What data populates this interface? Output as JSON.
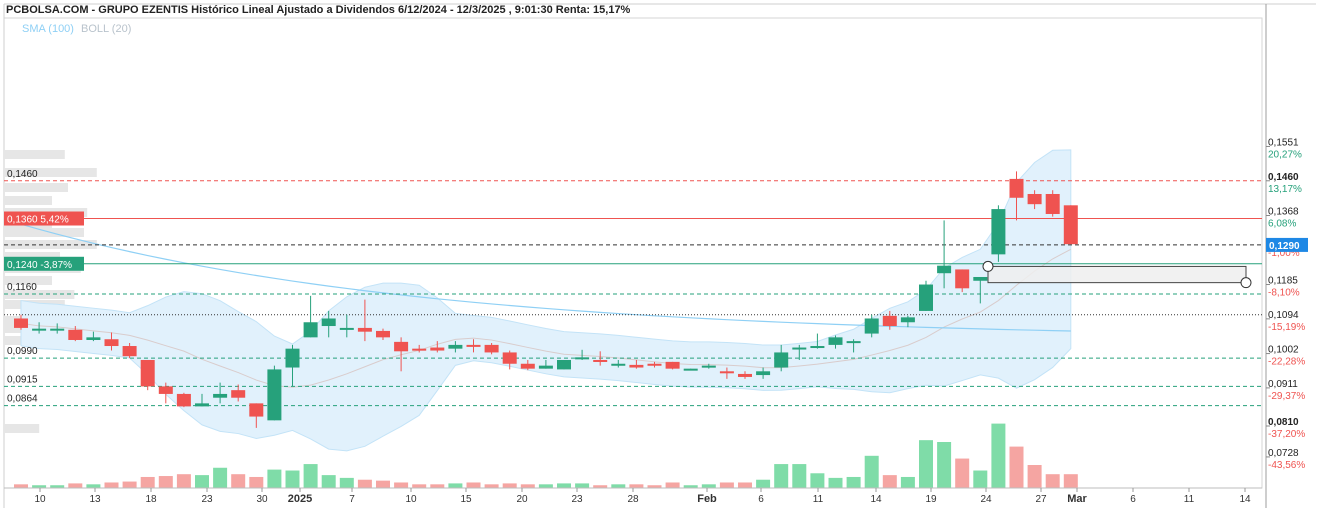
{
  "header": {
    "title": "PCBOLSA.COM - GRUPO EZENTIS Histórico Lineal Ajustado a Dividendos 6/12/2024 - 12/3/2025 , 9:01:30 Renta: 15,17%",
    "legend_sma": "SMA (100)",
    "legend_boll": "BOLL (20)"
  },
  "colors": {
    "up": "#26a17b",
    "down": "#ef5350",
    "vol_up": "#7fdca8",
    "vol_down": "#f5a5a2",
    "sma": "#8fd0f5",
    "boll_fill": "#e1f1fc",
    "boll_edge": "#c3e3f7",
    "resistance": "#ef5350",
    "support": "#26a17b",
    "last_price": "#1e88e5"
  },
  "chart_data": {
    "type": "candlestick",
    "title": "PCBOLSA.COM - GRUPO EZENTIS Histórico Lineal Ajustado a Dividendos 6/12/2024 - 12/3/2025 , 9:01:30 Renta: 15,17%",
    "x_axis_ticks": [
      "10",
      "13",
      "18",
      "23",
      "30",
      "2025",
      "7",
      "10",
      "15",
      "20",
      "23",
      "28",
      "Feb",
      "6",
      "11",
      "14",
      "19",
      "24",
      "27",
      "Mar",
      "6",
      "11",
      "14"
    ],
    "y_ticks": [
      {
        "value": 0.1551,
        "label": "0,1551",
        "pct": "20,27%"
      },
      {
        "value": 0.146,
        "label": "0,1460",
        "pct": "13,17%"
      },
      {
        "value": 0.1368,
        "label": "0,1368",
        "pct": "6,08%"
      },
      {
        "value": 0.129,
        "label": "0,1290",
        "pct": "-1,00%"
      },
      {
        "value": 0.1185,
        "label": "0,1185",
        "pct": "-8,10%"
      },
      {
        "value": 0.1094,
        "label": "0,1094",
        "pct": "-15,19%"
      },
      {
        "value": 0.1002,
        "label": "0,1002",
        "pct": "-22,28%"
      },
      {
        "value": 0.0911,
        "label": "0,0911",
        "pct": "-29,37%"
      },
      {
        "value": 0.081,
        "label": "0,0810",
        "pct": "-37,20%"
      },
      {
        "value": 0.0728,
        "label": "0,0728",
        "pct": "-43,56%"
      }
    ],
    "level_lines": [
      {
        "value": 0.146,
        "label": "0,1460",
        "style": "dashed-red"
      },
      {
        "value": 0.136,
        "label": "0,1360  5,42%",
        "style": "solid-red-tag"
      },
      {
        "value": 0.129,
        "label": "",
        "style": "dashed-black"
      },
      {
        "value": 0.124,
        "label": "0,1240  -3,87%",
        "style": "solid-green-tag"
      },
      {
        "value": 0.116,
        "label": "0,1160",
        "style": "dashed-green"
      },
      {
        "value": 0.1105,
        "label": "",
        "style": "dotted-black"
      },
      {
        "value": 0.099,
        "label": "0,0990",
        "style": "dashed-green"
      },
      {
        "value": 0.0915,
        "label": "0,0915",
        "style": "dashed-green"
      },
      {
        "value": 0.0864,
        "label": "0,0864",
        "style": "dashed-green"
      }
    ],
    "last_price": {
      "value": 0.129,
      "label": "0,1290"
    },
    "candles": [
      {
        "o": 0.1095,
        "h": 0.1105,
        "l": 0.1065,
        "c": 0.107,
        "v": 4
      },
      {
        "o": 0.1068,
        "h": 0.1085,
        "l": 0.1055,
        "c": 0.1068,
        "v": 3
      },
      {
        "o": 0.1068,
        "h": 0.1082,
        "l": 0.1055,
        "c": 0.1068,
        "v": 3
      },
      {
        "o": 0.1065,
        "h": 0.1075,
        "l": 0.1035,
        "c": 0.1038,
        "v": 5
      },
      {
        "o": 0.1038,
        "h": 0.106,
        "l": 0.1035,
        "c": 0.1045,
        "v": 4
      },
      {
        "o": 0.104,
        "h": 0.1058,
        "l": 0.101,
        "c": 0.1022,
        "v": 6
      },
      {
        "o": 0.1022,
        "h": 0.103,
        "l": 0.099,
        "c": 0.0995,
        "v": 7
      },
      {
        "o": 0.0985,
        "h": 0.0985,
        "l": 0.0905,
        "c": 0.0915,
        "v": 12
      },
      {
        "o": 0.0915,
        "h": 0.0925,
        "l": 0.087,
        "c": 0.0895,
        "v": 13
      },
      {
        "o": 0.0895,
        "h": 0.0898,
        "l": 0.086,
        "c": 0.0862,
        "v": 15
      },
      {
        "o": 0.0862,
        "h": 0.0895,
        "l": 0.0862,
        "c": 0.087,
        "v": 14
      },
      {
        "o": 0.0885,
        "h": 0.0925,
        "l": 0.087,
        "c": 0.0895,
        "v": 22
      },
      {
        "o": 0.0905,
        "h": 0.092,
        "l": 0.0875,
        "c": 0.0885,
        "v": 15
      },
      {
        "o": 0.087,
        "h": 0.087,
        "l": 0.0805,
        "c": 0.0835,
        "v": 12
      },
      {
        "o": 0.0825,
        "h": 0.097,
        "l": 0.0825,
        "c": 0.096,
        "v": 20
      },
      {
        "o": 0.0965,
        "h": 0.1025,
        "l": 0.0915,
        "c": 0.1015,
        "v": 19
      },
      {
        "o": 0.1045,
        "h": 0.1155,
        "l": 0.1045,
        "c": 0.1085,
        "v": 26
      },
      {
        "o": 0.1075,
        "h": 0.1115,
        "l": 0.1045,
        "c": 0.1095,
        "v": 14
      },
      {
        "o": 0.1068,
        "h": 0.1105,
        "l": 0.1045,
        "c": 0.107,
        "v": 11
      },
      {
        "o": 0.107,
        "h": 0.1145,
        "l": 0.1035,
        "c": 0.106,
        "v": 9
      },
      {
        "o": 0.1062,
        "h": 0.1068,
        "l": 0.1038,
        "c": 0.1045,
        "v": 8
      },
      {
        "o": 0.1033,
        "h": 0.1045,
        "l": 0.0955,
        "c": 0.1008,
        "v": 6
      },
      {
        "o": 0.1015,
        "h": 0.1025,
        "l": 0.1005,
        "c": 0.1012,
        "v": 4
      },
      {
        "o": 0.1018,
        "h": 0.1035,
        "l": 0.1005,
        "c": 0.101,
        "v": 4
      },
      {
        "o": 0.1015,
        "h": 0.1035,
        "l": 0.1005,
        "c": 0.1025,
        "v": 5
      },
      {
        "o": 0.1025,
        "h": 0.104,
        "l": 0.1005,
        "c": 0.102,
        "v": 6
      },
      {
        "o": 0.1025,
        "h": 0.103,
        "l": 0.1,
        "c": 0.1005,
        "v": 4
      },
      {
        "o": 0.1005,
        "h": 0.101,
        "l": 0.096,
        "c": 0.0975,
        "v": 5
      },
      {
        "o": 0.0975,
        "h": 0.0985,
        "l": 0.0958,
        "c": 0.0962,
        "v": 4
      },
      {
        "o": 0.0962,
        "h": 0.0985,
        "l": 0.0962,
        "c": 0.097,
        "v": 4
      },
      {
        "o": 0.096,
        "h": 0.0985,
        "l": 0.096,
        "c": 0.0985,
        "v": 5
      },
      {
        "o": 0.099,
        "h": 0.1012,
        "l": 0.0985,
        "c": 0.0992,
        "v": 5
      },
      {
        "o": 0.0985,
        "h": 0.1008,
        "l": 0.097,
        "c": 0.098,
        "v": 3
      },
      {
        "o": 0.0975,
        "h": 0.0985,
        "l": 0.0965,
        "c": 0.0975,
        "v": 4
      },
      {
        "o": 0.0972,
        "h": 0.0985,
        "l": 0.0962,
        "c": 0.0965,
        "v": 4
      },
      {
        "o": 0.0975,
        "h": 0.098,
        "l": 0.0965,
        "c": 0.097,
        "v": 3
      },
      {
        "o": 0.098,
        "h": 0.098,
        "l": 0.096,
        "c": 0.0962,
        "v": 6
      },
      {
        "o": 0.0962,
        "h": 0.0962,
        "l": 0.096,
        "c": 0.0962,
        "v": 3
      },
      {
        "o": 0.0965,
        "h": 0.0975,
        "l": 0.0962,
        "c": 0.097,
        "v": 4
      },
      {
        "o": 0.0955,
        "h": 0.0965,
        "l": 0.0935,
        "c": 0.095,
        "v": 6
      },
      {
        "o": 0.0948,
        "h": 0.0955,
        "l": 0.0935,
        "c": 0.094,
        "v": 6
      },
      {
        "o": 0.0945,
        "h": 0.0965,
        "l": 0.0935,
        "c": 0.0955,
        "v": 9
      },
      {
        "o": 0.0965,
        "h": 0.1025,
        "l": 0.0955,
        "c": 0.1005,
        "v": 26
      },
      {
        "o": 0.1015,
        "h": 0.1025,
        "l": 0.0985,
        "c": 0.1018,
        "v": 26
      },
      {
        "o": 0.1018,
        "h": 0.1055,
        "l": 0.1015,
        "c": 0.1022,
        "v": 16
      },
      {
        "o": 0.1025,
        "h": 0.105,
        "l": 0.1015,
        "c": 0.1045,
        "v": 11
      },
      {
        "o": 0.1035,
        "h": 0.104,
        "l": 0.1005,
        "c": 0.1035,
        "v": 12
      },
      {
        "o": 0.1055,
        "h": 0.1105,
        "l": 0.1045,
        "c": 0.1095,
        "v": 35
      },
      {
        "o": 0.1102,
        "h": 0.1115,
        "l": 0.1065,
        "c": 0.1075,
        "v": 14
      },
      {
        "o": 0.1085,
        "h": 0.1102,
        "l": 0.1072,
        "c": 0.1098,
        "v": 12
      },
      {
        "o": 0.1115,
        "h": 0.1195,
        "l": 0.1115,
        "c": 0.1185,
        "v": 52
      },
      {
        "o": 0.1215,
        "h": 0.1355,
        "l": 0.1175,
        "c": 0.1235,
        "v": 50
      },
      {
        "o": 0.1225,
        "h": 0.1225,
        "l": 0.1165,
        "c": 0.1175,
        "v": 32
      },
      {
        "o": 0.1195,
        "h": 0.1205,
        "l": 0.1135,
        "c": 0.1205,
        "v": 19
      },
      {
        "o": 0.1265,
        "h": 0.1395,
        "l": 0.1245,
        "c": 0.1385,
        "v": 70
      },
      {
        "o": 0.1465,
        "h": 0.1485,
        "l": 0.1355,
        "c": 0.1415,
        "v": 45
      },
      {
        "o": 0.1425,
        "h": 0.1435,
        "l": 0.1385,
        "c": 0.1398,
        "v": 25
      },
      {
        "o": 0.1425,
        "h": 0.1435,
        "l": 0.1365,
        "c": 0.1372,
        "v": 15
      },
      {
        "o": 0.1395,
        "h": 0.1395,
        "l": 0.1292,
        "c": 0.1292,
        "v": 15
      }
    ]
  }
}
